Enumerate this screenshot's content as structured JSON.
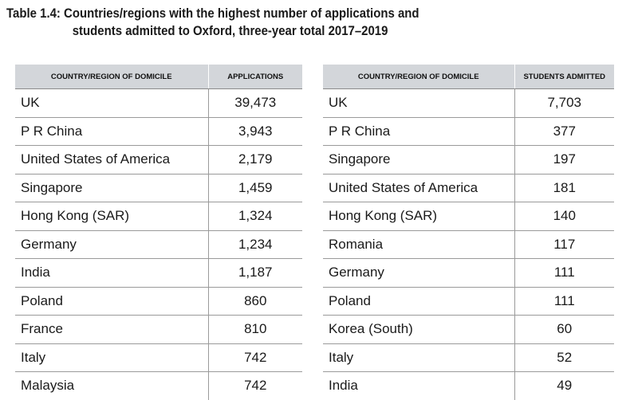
{
  "title": {
    "line1": "Table 1.4: Countries/regions with the highest number of applications and",
    "line2": "students admitted to Oxford, three-year total 2017–2019"
  },
  "applications_table": {
    "headers": [
      "COUNTRY/REGION OF DOMICILE",
      "APPLICATIONS"
    ],
    "rows": [
      {
        "country": "UK",
        "value": "39,473"
      },
      {
        "country": "P R China",
        "value": "3,943"
      },
      {
        "country": "United States of America",
        "value": "2,179"
      },
      {
        "country": "Singapore",
        "value": "1,459"
      },
      {
        "country": "Hong Kong (SAR)",
        "value": "1,324"
      },
      {
        "country": "Germany",
        "value": "1,234"
      },
      {
        "country": "India",
        "value": "1,187"
      },
      {
        "country": "Poland",
        "value": "860"
      },
      {
        "country": "France",
        "value": "810"
      },
      {
        "country": "Italy",
        "value": "742"
      },
      {
        "country": "Malaysia",
        "value": "742"
      }
    ]
  },
  "admitted_table": {
    "headers": [
      "COUNTRY/REGION OF DOMICILE",
      "STUDENTS ADMITTED"
    ],
    "rows": [
      {
        "country": "UK",
        "value": "7,703"
      },
      {
        "country": "P R China",
        "value": "377"
      },
      {
        "country": "Singapore",
        "value": "197"
      },
      {
        "country": "United States of America",
        "value": "181"
      },
      {
        "country": "Hong Kong (SAR)",
        "value": "140"
      },
      {
        "country": "Romania",
        "value": "117"
      },
      {
        "country": "Germany",
        "value": "111"
      },
      {
        "country": "Poland",
        "value": "111"
      },
      {
        "country": "Korea (South)",
        "value": "60"
      },
      {
        "country": "Italy",
        "value": "52"
      },
      {
        "country": "India",
        "value": "49"
      }
    ]
  },
  "colors": {
    "header_bg": "#d3d6da",
    "rule": "#9a9a9a",
    "text": "#1a1a1a"
  }
}
